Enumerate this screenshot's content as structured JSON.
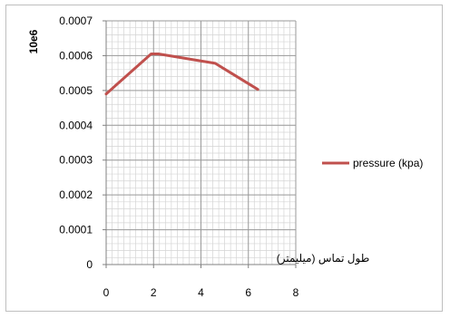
{
  "chart_data": {
    "type": "line",
    "ylabel": "10e6",
    "xlabel": "طول تماس (میلیمتر)",
    "xlim": [
      0,
      8
    ],
    "ylim": [
      0,
      0.0007
    ],
    "x_ticks": [
      "0",
      "2",
      "4",
      "6",
      "8"
    ],
    "y_ticks": [
      "0",
      "0.0001",
      "0.0002",
      "0.0003",
      "0.0004",
      "0.0005",
      "0.0006",
      "0.0007"
    ],
    "grid": true,
    "legend_position": "right",
    "series": [
      {
        "name": "pressure (kpa)",
        "color": "#c0504d",
        "x": [
          0,
          1.9,
          2.2,
          4.6,
          6.4
        ],
        "y": [
          0.00049,
          0.000605,
          0.000605,
          0.000578,
          0.000503
        ]
      }
    ]
  }
}
